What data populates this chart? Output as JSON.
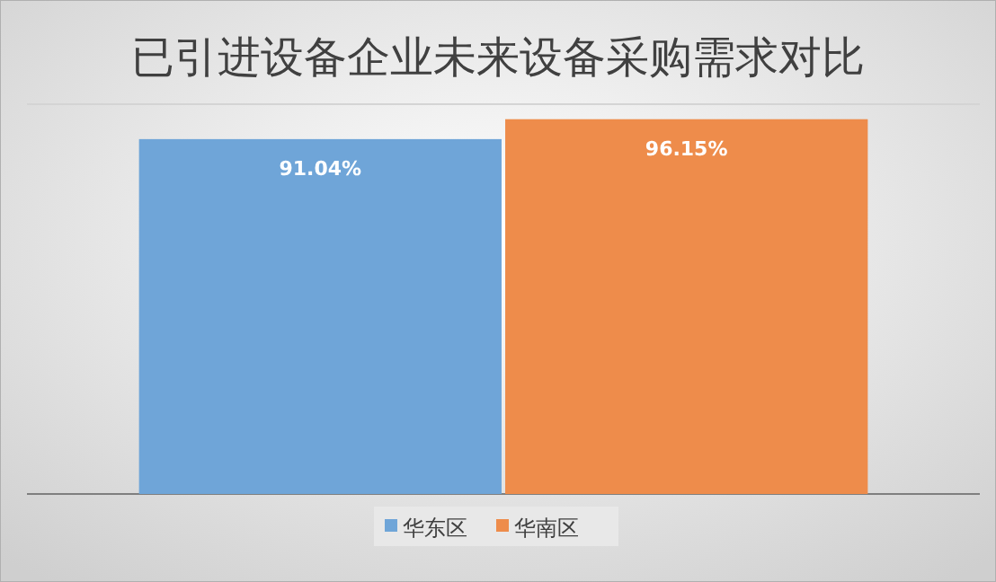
{
  "chart_data": {
    "type": "bar",
    "title": "已引进设备企业未来设备采购需求对比",
    "categories": [
      null
    ],
    "series": [
      {
        "name": "华东区",
        "color": "#6fa5d8",
        "values": [
          91.04
        ],
        "value_labels": [
          "91.04%"
        ]
      },
      {
        "name": "华南区",
        "color": "#ee8c4b",
        "values": [
          96.15
        ],
        "value_labels": [
          "96.15%"
        ]
      }
    ],
    "ylim": [
      0,
      100
    ],
    "yticks": [
      {
        "value": 0,
        "label": null
      },
      {
        "value": 100,
        "label": null
      }
    ],
    "grid": "y",
    "legend": "bottom"
  }
}
